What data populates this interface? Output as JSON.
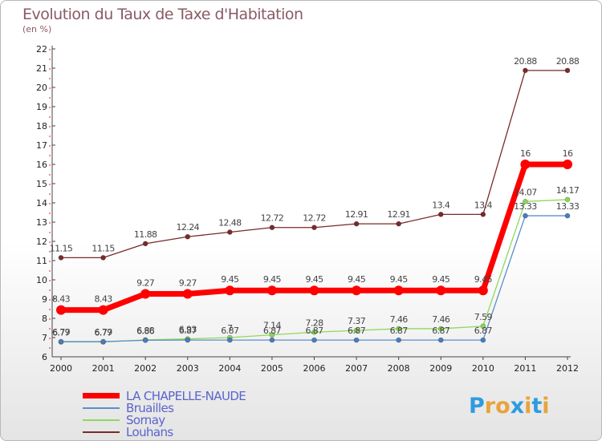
{
  "title": "Evolution du Taux de Taxe d'Habitation",
  "unit_label": "(en %)",
  "logo": {
    "text": "Proxiti",
    "letters": [
      "P",
      "r",
      "o",
      "x",
      "i",
      "t",
      "i"
    ],
    "colors": [
      "#2e9be0",
      "#e8a33c",
      "#e8a33c",
      "#2e9be0",
      "#e8a33c",
      "#2e9be0",
      "#e8a33c"
    ]
  },
  "chart_data": {
    "type": "line",
    "title": "Evolution du Taux de Taxe d'Habitation",
    "ylabel": "(en %)",
    "xlabel": "",
    "ylim": [
      6,
      22
    ],
    "y_ticks": [
      "6",
      "7",
      "8",
      "9",
      "10",
      "11",
      "12",
      "13",
      "14",
      "15",
      "16",
      "17",
      "18",
      "19",
      "20",
      "21",
      "22"
    ],
    "categories": [
      "2000",
      "2001",
      "2002",
      "2003",
      "2004",
      "2005",
      "2006",
      "2007",
      "2008",
      "2009",
      "2010",
      "2011",
      "2012"
    ],
    "grid": false,
    "legend_position": "bottom-left",
    "series": [
      {
        "name": "LA CHAPELLE-NAUDE",
        "color": "#ff0000",
        "values": [
          8.43,
          8.43,
          9.27,
          9.27,
          9.45,
          9.45,
          9.45,
          9.45,
          9.45,
          9.45,
          9.45,
          16,
          16
        ],
        "labels": [
          "8.43",
          "8.43",
          "9.27",
          "9.27",
          "9.45",
          "9.45",
          "9.45",
          "9.45",
          "9.45",
          "9.45",
          "9.45",
          "16",
          "16"
        ]
      },
      {
        "name": "Bruailles",
        "color": "#5b8ec8",
        "values": [
          6.79,
          6.79,
          6.86,
          6.87,
          6.87,
          6.87,
          6.87,
          6.87,
          6.87,
          6.87,
          6.87,
          13.33,
          13.33
        ],
        "labels": [
          "6.79",
          "6.79",
          "6.86",
          "6.87",
          "6.87",
          "6.87",
          "6.87",
          "6.87",
          "6.87",
          "6.87",
          "6.87",
          "13.33",
          "13.33"
        ]
      },
      {
        "name": "Sornay",
        "color": "#8fd85c",
        "values": [
          6.77,
          6.77,
          6.88,
          6.93,
          7,
          7.14,
          7.28,
          7.37,
          7.46,
          7.46,
          7.59,
          14.07,
          14.17
        ],
        "labels": [
          "6.77",
          "6.77",
          "6.88",
          "6.93",
          "7",
          "7.14",
          "7.28",
          "7.37",
          "7.46",
          "7.46",
          "7.59",
          "14.07",
          "14.17"
        ]
      },
      {
        "name": "Louhans",
        "color": "#7a2a2a",
        "values": [
          11.15,
          11.15,
          11.88,
          12.24,
          12.48,
          12.72,
          12.72,
          12.91,
          12.91,
          13.4,
          13.4,
          20.88,
          20.88
        ],
        "labels": [
          "11.15",
          "11.15",
          "11.88",
          "12.24",
          "12.48",
          "12.72",
          "12.72",
          "12.91",
          "12.91",
          "13.4",
          "13.4",
          "20.88",
          "20.88"
        ]
      }
    ]
  }
}
